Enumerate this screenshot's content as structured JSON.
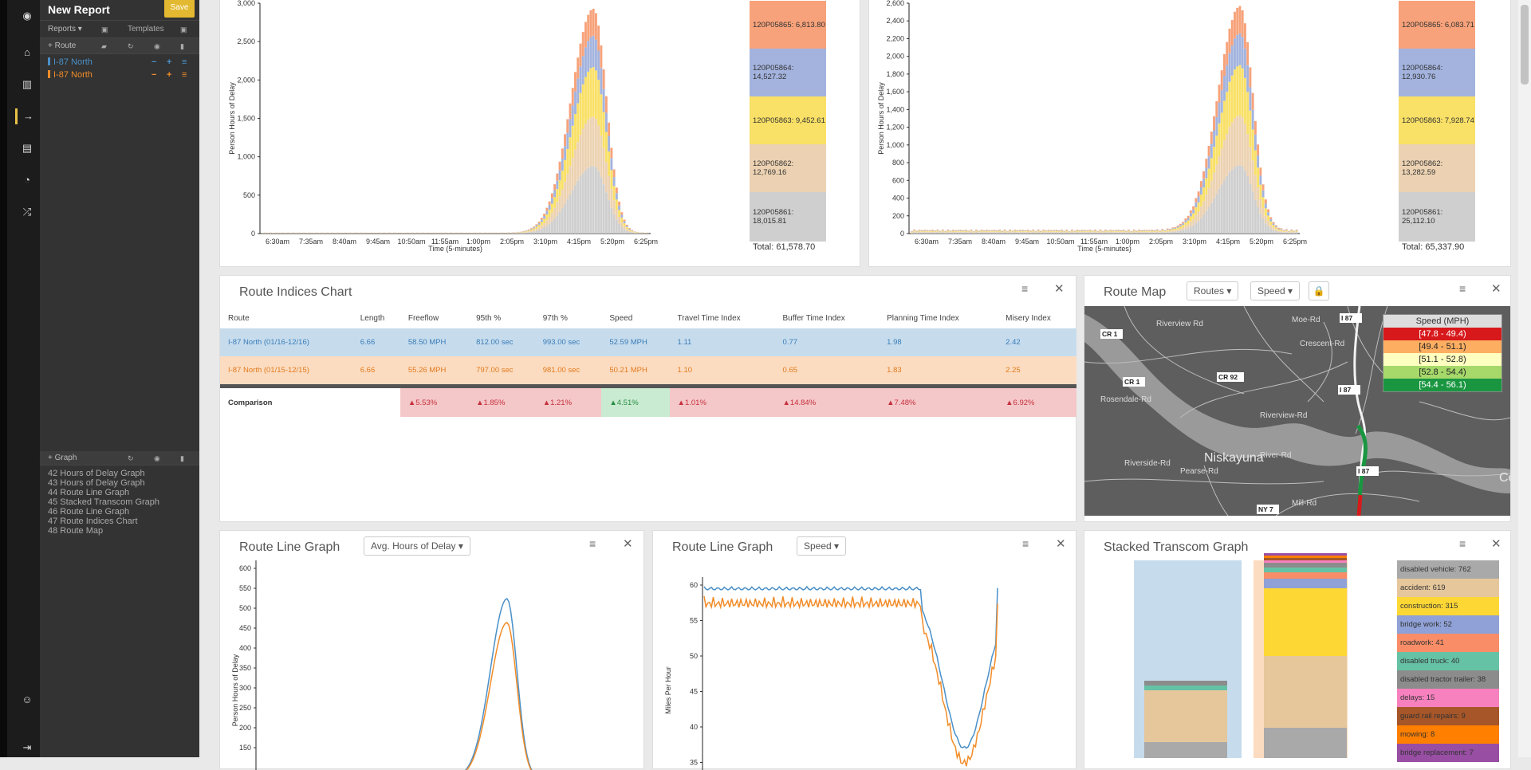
{
  "app": {
    "report_title": "New Report",
    "save_label": "Save",
    "menu_reports": "Reports ▾",
    "menu_templates": "Templates"
  },
  "sidebar": {
    "route_section": "+ Route",
    "routes": [
      {
        "label": "I-87 North",
        "color": "#4a90c8"
      },
      {
        "label": "I-87 North",
        "color": "#f28c28"
      }
    ],
    "graph_section": "+ Graph",
    "graphs": [
      "42 Hours of Delay Graph",
      "43 Hours of Delay Graph",
      "44 Route Line Graph",
      "45 Stacked Transcom Graph",
      "46 Route Line Graph",
      "47 Route Indices Chart",
      "48 Route Map"
    ]
  },
  "top_left": {
    "ylabel": "Person Hours of Delay",
    "xlabel": "Time (5-minutes)",
    "yticks": [
      "0",
      "500",
      "1,000",
      "1,500",
      "2,000",
      "2,500",
      "3,000"
    ],
    "xticks": [
      "6:30am",
      "7:35am",
      "8:40am",
      "9:45am",
      "10:50am",
      "11:55am",
      "1:00pm",
      "2:05pm",
      "3:10pm",
      "4:15pm",
      "5:20pm",
      "6:25pm"
    ],
    "legend": [
      {
        "label": "120P05865: 6,813.80",
        "color": "#f7a27a"
      },
      {
        "label": "120P05864: 14,527.32",
        "color": "#a3b3de"
      },
      {
        "label": "120P05863: 9,452.61",
        "color": "#f9e066"
      },
      {
        "label": "120P05862: 12,769.16",
        "color": "#ecd2b2"
      },
      {
        "label": "120P05861: 18,015.81",
        "color": "#cfcfcf"
      }
    ],
    "total": "Total: 61,578.70"
  },
  "top_right": {
    "ylabel": "Person Hours of Delay",
    "xlabel": "Time (5-minutes)",
    "yticks": [
      "0",
      "200",
      "400",
      "600",
      "800",
      "1,000",
      "1,200",
      "1,400",
      "1,600",
      "1,800",
      "2,000",
      "2,200",
      "2,400",
      "2,600"
    ],
    "xticks": [
      "6:30am",
      "7:35am",
      "8:40am",
      "9:45am",
      "10:50am",
      "11:55am",
      "1:00pm",
      "2:05pm",
      "3:10pm",
      "4:15pm",
      "5:20pm",
      "6:25pm"
    ],
    "legend": [
      {
        "label": "120P05865: 6,083.71",
        "color": "#f7a27a"
      },
      {
        "label": "120P05864: 12,930.76",
        "color": "#a3b3de"
      },
      {
        "label": "120P05863: 7,928.74",
        "color": "#f9e066"
      },
      {
        "label": "120P05862: 13,282.59",
        "color": "#ecd2b2"
      },
      {
        "label": "120P05861: 25,112.10",
        "color": "#cfcfcf"
      }
    ],
    "total": "Total: 65,337.90"
  },
  "indices": {
    "title": "Route Indices Chart",
    "headers": [
      "Route",
      "Length",
      "Freeflow",
      "95th %",
      "97th %",
      "Speed",
      "Travel Time Index",
      "Buffer Time Index",
      "Planning Time Index",
      "Misery Index"
    ],
    "rows": [
      {
        "cells": [
          "I-87 North (01/16-12/16)",
          "6.66",
          "58.50 MPH",
          "812.00 sec",
          "993.00 sec",
          "52.59 MPH",
          "1.11",
          "0.77",
          "1.98",
          "2.42"
        ],
        "bg": "#c6dced",
        "fg": "#3a7cb8"
      },
      {
        "cells": [
          "I-87 North (01/15-12/15)",
          "6.66",
          "55.26 MPH",
          "797.00 sec",
          "981.00 sec",
          "50.21 MPH",
          "1.10",
          "0.65",
          "1.83",
          "2.25"
        ],
        "bg": "#fcdcc0",
        "fg": "#e07a1f"
      }
    ],
    "comparison_label": "Comparison",
    "comparison": [
      "▲5.53%",
      "▲1.85%",
      "▲1.21%",
      "▲4.51%",
      "▲1.01%",
      "▲14.84%",
      "▲7.48%",
      "▲6.92%"
    ]
  },
  "map": {
    "title": "Route Map",
    "dd_routes": "Routes ▾",
    "dd_speed": "Speed ▾",
    "legend_title": "Speed (MPH)",
    "legend": [
      {
        "label": "[47.8  -  49.4)",
        "color": "#d7191c",
        "fg": "#fff"
      },
      {
        "label": "[49.4  -  51.1)",
        "color": "#fdae61",
        "fg": "#222"
      },
      {
        "label": "[51.1  -  52.8)",
        "color": "#ffffbf",
        "fg": "#222"
      },
      {
        "label": "[52.8  -  54.4)",
        "color": "#a6d96a",
        "fg": "#222"
      },
      {
        "label": "[54.4  -  56.1)",
        "color": "#1a9641",
        "fg": "#fff"
      }
    ],
    "labels": [
      "CR 1",
      "CR 1",
      "CR 92",
      "I 87",
      "I 87",
      "I 87",
      "NY 7",
      "Niskayuna",
      "Rosendale-Rd",
      "Riverview Rd",
      "Riverview-Rd",
      "Crescent-Rd",
      "Moe-Rd",
      "River-Rd",
      "Mill-Rd",
      "Pearse-Rd",
      "Riverside-Rd",
      "Coho"
    ]
  },
  "line1": {
    "title": "Route Line Graph",
    "dropdown": "Avg. Hours of Delay ▾",
    "ylabel": "Person Hours of Delay",
    "yticks": [
      "150",
      "200",
      "250",
      "300",
      "350",
      "400",
      "450",
      "500",
      "550",
      "600"
    ]
  },
  "line2": {
    "title": "Route Line Graph",
    "dropdown": "Speed ▾",
    "ylabel": "Miles Per Hour",
    "yticks": [
      "35",
      "40",
      "45",
      "50",
      "55",
      "60"
    ]
  },
  "stacked": {
    "title": "Stacked Transcom Graph",
    "legend": [
      {
        "label": "disabled vehicle: 762",
        "color": "#a9a9a9"
      },
      {
        "label": "accident: 619",
        "color": "#e6c79c"
      },
      {
        "label": "construction: 315",
        "color": "#fdd835"
      },
      {
        "label": "bridge work: 52",
        "color": "#8fa1d6"
      },
      {
        "label": "roadwork: 41",
        "color": "#f98d67"
      },
      {
        "label": "disabled truck: 40",
        "color": "#66c2a5"
      },
      {
        "label": "disabled tractor trailer: 38",
        "color": "#8c8c8c"
      },
      {
        "label": "delays: 15",
        "color": "#f781bf"
      },
      {
        "label": "guard rail repairs: 9",
        "color": "#a65628"
      },
      {
        "label": "mowing: 8",
        "color": "#ff7f00"
      },
      {
        "label": "bridge replacement: 7",
        "color": "#984ea3"
      }
    ]
  }
}
